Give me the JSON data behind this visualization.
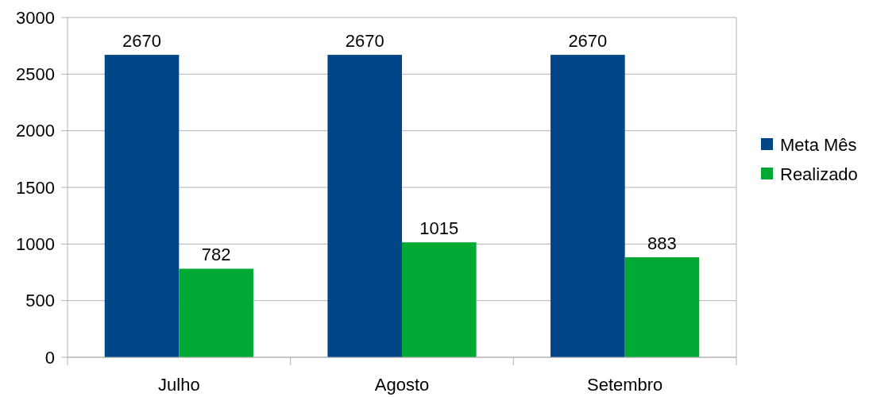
{
  "chart_data": {
    "type": "bar",
    "categories": [
      "Julho",
      "Agosto",
      "Setembro"
    ],
    "series": [
      {
        "name": "Meta Mês",
        "color": "#004586",
        "values": [
          2670,
          2670,
          2670
        ]
      },
      {
        "name": "Realizado",
        "color": "#00a933",
        "values": [
          782,
          1015,
          883
        ]
      }
    ],
    "ylim": [
      0,
      3000
    ],
    "yticks": [
      0,
      500,
      1000,
      1500,
      2000,
      2500,
      3000
    ],
    "grid": "y",
    "legend": "right",
    "data_labels": true
  }
}
